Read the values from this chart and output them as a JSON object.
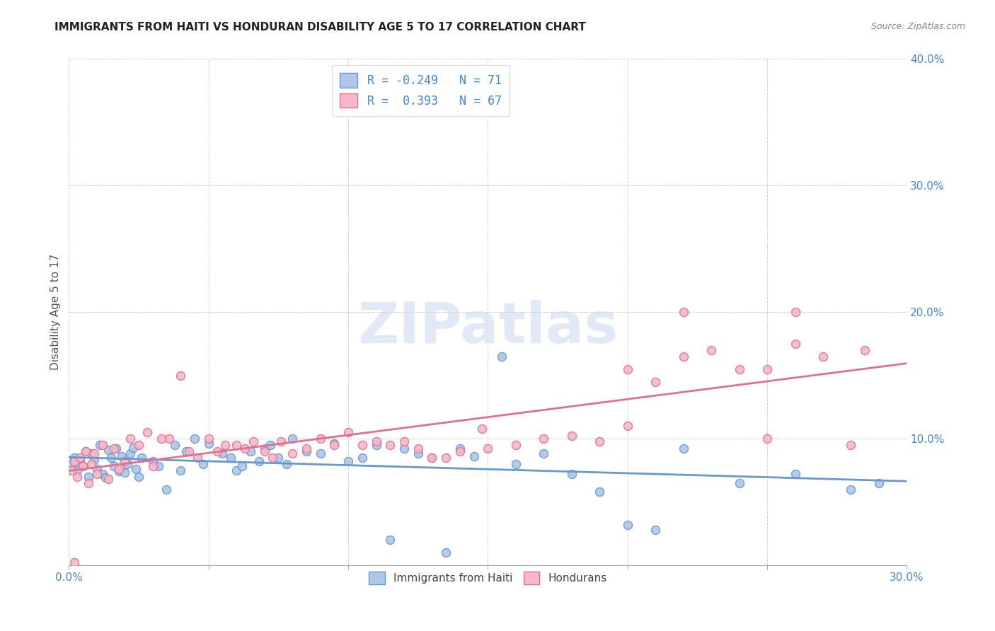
{
  "title": "IMMIGRANTS FROM HAITI VS HONDURAN DISABILITY AGE 5 TO 17 CORRELATION CHART",
  "source": "Source: ZipAtlas.com",
  "ylabel": "Disability Age 5 to 17",
  "xlim": [
    0.0,
    0.3
  ],
  "ylim": [
    0.0,
    0.4
  ],
  "xticks": [
    0.0,
    0.05,
    0.1,
    0.15,
    0.2,
    0.25,
    0.3
  ],
  "yticks": [
    0.0,
    0.1,
    0.2,
    0.3,
    0.4
  ],
  "color_haiti": "#aec6e8",
  "color_haiti_edge": "#6699cc",
  "color_honduran": "#f5b8c8",
  "color_honduran_edge": "#e07090",
  "color_haiti_line": "#6699cc",
  "color_honduran_line": "#e07090",
  "color_axis_blue": "#4488cc",
  "color_title": "#222222",
  "color_grid": "#cccccc",
  "watermark": "ZIPatlas",
  "legend1_label": "R = -0.249   N = 71",
  "legend2_label": "R =  0.393   N = 67",
  "haiti_x": [
    0.001,
    0.002,
    0.003,
    0.004,
    0.005,
    0.006,
    0.007,
    0.008,
    0.009,
    0.01,
    0.011,
    0.012,
    0.013,
    0.014,
    0.015,
    0.016,
    0.017,
    0.018,
    0.019,
    0.02,
    0.021,
    0.022,
    0.023,
    0.024,
    0.025,
    0.026,
    0.03,
    0.032,
    0.035,
    0.038,
    0.04,
    0.042,
    0.045,
    0.048,
    0.05,
    0.055,
    0.058,
    0.06,
    0.062,
    0.065,
    0.068,
    0.07,
    0.072,
    0.075,
    0.078,
    0.08,
    0.085,
    0.09,
    0.095,
    0.1,
    0.105,
    0.11,
    0.115,
    0.12,
    0.125,
    0.13,
    0.135,
    0.14,
    0.145,
    0.155,
    0.16,
    0.17,
    0.18,
    0.19,
    0.2,
    0.21,
    0.22,
    0.24,
    0.26,
    0.28,
    0.29
  ],
  "haiti_y": [
    0.08,
    0.085,
    0.075,
    0.082,
    0.078,
    0.09,
    0.07,
    0.088,
    0.083,
    0.076,
    0.095,
    0.072,
    0.069,
    0.091,
    0.085,
    0.078,
    0.092,
    0.074,
    0.086,
    0.073,
    0.08,
    0.088,
    0.093,
    0.076,
    0.07,
    0.085,
    0.082,
    0.078,
    0.06,
    0.095,
    0.075,
    0.09,
    0.1,
    0.08,
    0.096,
    0.088,
    0.085,
    0.075,
    0.078,
    0.09,
    0.082,
    0.092,
    0.095,
    0.085,
    0.08,
    0.1,
    0.09,
    0.088,
    0.096,
    0.082,
    0.085,
    0.095,
    0.02,
    0.092,
    0.088,
    0.085,
    0.01,
    0.092,
    0.086,
    0.165,
    0.08,
    0.088,
    0.072,
    0.058,
    0.032,
    0.028,
    0.092,
    0.065,
    0.072,
    0.06,
    0.065
  ],
  "honduran_x": [
    0.001,
    0.002,
    0.003,
    0.004,
    0.005,
    0.006,
    0.007,
    0.008,
    0.009,
    0.01,
    0.012,
    0.014,
    0.016,
    0.018,
    0.02,
    0.022,
    0.025,
    0.028,
    0.03,
    0.033,
    0.036,
    0.04,
    0.043,
    0.046,
    0.05,
    0.053,
    0.056,
    0.06,
    0.063,
    0.066,
    0.07,
    0.073,
    0.076,
    0.08,
    0.085,
    0.09,
    0.095,
    0.1,
    0.105,
    0.11,
    0.115,
    0.12,
    0.125,
    0.13,
    0.135,
    0.14,
    0.15,
    0.16,
    0.17,
    0.18,
    0.19,
    0.2,
    0.21,
    0.22,
    0.24,
    0.26,
    0.2,
    0.22,
    0.23,
    0.25,
    0.26,
    0.27,
    0.285,
    0.148,
    0.002,
    0.25,
    0.28
  ],
  "honduran_y": [
    0.075,
    0.082,
    0.07,
    0.085,
    0.078,
    0.09,
    0.065,
    0.08,
    0.088,
    0.072,
    0.095,
    0.068,
    0.092,
    0.076,
    0.082,
    0.1,
    0.095,
    0.105,
    0.078,
    0.1,
    0.1,
    0.15,
    0.09,
    0.085,
    0.1,
    0.09,
    0.095,
    0.095,
    0.092,
    0.098,
    0.09,
    0.085,
    0.098,
    0.088,
    0.092,
    0.1,
    0.095,
    0.105,
    0.095,
    0.098,
    0.095,
    0.098,
    0.092,
    0.085,
    0.085,
    0.09,
    0.092,
    0.095,
    0.1,
    0.102,
    0.098,
    0.11,
    0.145,
    0.2,
    0.155,
    0.2,
    0.155,
    0.165,
    0.17,
    0.155,
    0.175,
    0.165,
    0.17,
    0.108,
    0.002,
    0.1,
    0.095
  ]
}
